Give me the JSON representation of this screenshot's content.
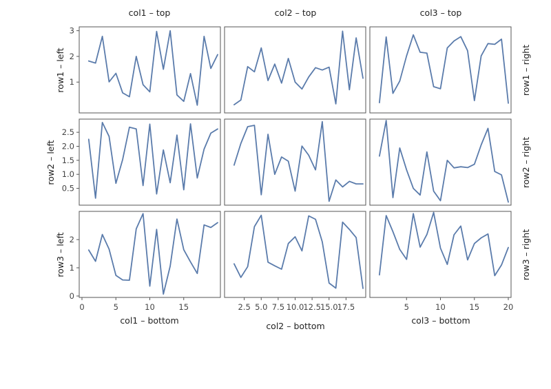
{
  "chart_data": {
    "type": "line",
    "colors": {
      "line": "#5a7bab",
      "frame": "#555555",
      "text": "#222222"
    },
    "col_titles": [
      "col1 – top",
      "col2 – top",
      "col3 – top"
    ],
    "row_labels": [
      "row1 – left",
      "row2 – left",
      "row3 – left"
    ],
    "right_labels": [
      "row1 – right",
      "row2 – right",
      "row3 – right"
    ],
    "bottom_labels": [
      "col1 – bottom",
      "col2 – bottom",
      "col3 – bottom"
    ],
    "xlim": [
      0,
      20
    ],
    "ylims": [
      [
        -0.2,
        3.15
      ],
      [
        -0.1,
        2.97
      ],
      [
        -0.05,
        3.0
      ]
    ],
    "row_yticks": [
      {
        "values": [
          1,
          2,
          3
        ],
        "labels": [
          "1",
          "2",
          "3"
        ]
      },
      {
        "values": [
          0.5,
          1.0,
          1.5,
          2.0,
          2.5
        ],
        "labels": [
          "0.5",
          "1.0",
          "1.5",
          "2.0",
          "2.5"
        ]
      },
      {
        "values": [
          0,
          1,
          2
        ],
        "labels": [
          "0",
          "1",
          "2"
        ]
      }
    ],
    "col_xticks": [
      {
        "values": [
          0,
          5,
          10,
          15
        ],
        "labels": [
          "0",
          "5",
          "10",
          "15"
        ]
      },
      {
        "values": [
          2.5,
          5.0,
          7.5,
          10.0,
          12.5,
          15.0,
          17.5
        ],
        "labels": [
          "2.5",
          "5.0",
          "7.5",
          "10.0",
          "12.5",
          "15.0",
          "17.5"
        ]
      },
      {
        "values": [
          5,
          10,
          15,
          20
        ],
        "labels": [
          "5",
          "10",
          "15",
          "20"
        ]
      }
    ],
    "panels": [
      {
        "row": 0,
        "col": 0,
        "x": [
          1,
          2,
          3,
          4,
          5,
          6,
          7,
          8,
          9,
          10,
          11,
          12,
          13,
          14,
          15,
          16,
          17,
          18,
          19,
          20
        ],
        "y": [
          1.82,
          1.74,
          2.78,
          1.01,
          1.34,
          0.58,
          0.43,
          2.0,
          0.9,
          0.62,
          2.97,
          1.5,
          3.0,
          0.5,
          0.25,
          1.33,
          0.1,
          2.78,
          1.53,
          2.07
        ]
      },
      {
        "row": 0,
        "col": 1,
        "x": [
          1,
          2,
          3,
          4,
          5,
          6,
          7,
          8,
          9,
          10,
          11,
          12,
          13,
          14,
          15,
          16,
          17,
          18,
          19,
          20
        ],
        "y": [
          0.12,
          0.3,
          1.6,
          1.4,
          2.33,
          1.06,
          1.7,
          0.96,
          1.92,
          1.0,
          0.73,
          1.2,
          1.56,
          1.47,
          1.58,
          0.15,
          2.98,
          0.7,
          2.72,
          1.15
        ]
      },
      {
        "row": 0,
        "col": 2,
        "x": [
          1,
          2,
          3,
          4,
          5,
          6,
          7,
          8,
          9,
          10,
          11,
          12,
          13,
          14,
          15,
          16,
          17,
          18,
          19,
          20
        ],
        "y": [
          0.2,
          2.76,
          0.56,
          1.04,
          2.02,
          2.84,
          2.16,
          2.13,
          0.82,
          0.74,
          2.33,
          2.6,
          2.77,
          2.22,
          0.28,
          2.02,
          2.5,
          2.47,
          2.67,
          0.18
        ]
      },
      {
        "row": 1,
        "col": 0,
        "x": [
          1,
          2,
          3,
          4,
          5,
          6,
          7,
          8,
          9,
          10,
          11,
          12,
          13,
          14,
          15,
          16,
          17,
          18,
          19,
          20
        ],
        "y": [
          2.25,
          0.15,
          2.85,
          2.35,
          0.68,
          1.53,
          2.68,
          2.62,
          0.6,
          2.79,
          0.3,
          1.87,
          0.7,
          2.4,
          0.45,
          2.8,
          0.87,
          1.9,
          2.47,
          2.62
        ]
      },
      {
        "row": 1,
        "col": 1,
        "x": [
          1,
          2,
          3,
          4,
          5,
          6,
          7,
          8,
          9,
          10,
          11,
          12,
          13,
          14,
          15,
          16,
          17,
          18,
          19,
          20
        ],
        "y": [
          1.33,
          2.1,
          2.7,
          2.75,
          0.27,
          2.43,
          1.0,
          1.62,
          1.47,
          0.4,
          2.01,
          1.68,
          1.16,
          2.88,
          0.04,
          0.8,
          0.55,
          0.75,
          0.66,
          0.66
        ]
      },
      {
        "row": 1,
        "col": 2,
        "x": [
          1,
          2,
          3,
          4,
          5,
          6,
          7,
          8,
          9,
          10,
          11,
          12,
          13,
          14,
          15,
          16,
          17,
          18,
          19,
          20
        ],
        "y": [
          1.65,
          2.92,
          0.17,
          1.94,
          1.16,
          0.5,
          0.26,
          1.8,
          0.4,
          0.06,
          1.5,
          1.23,
          1.27,
          1.24,
          1.36,
          2.05,
          2.64,
          1.1,
          0.98,
          0.01
        ]
      },
      {
        "row": 2,
        "col": 0,
        "x": [
          1,
          2,
          3,
          4,
          5,
          6,
          7,
          8,
          9,
          10,
          11,
          12,
          13,
          14,
          15,
          16,
          17,
          18,
          19,
          20
        ],
        "y": [
          1.63,
          1.23,
          2.18,
          1.66,
          0.73,
          0.57,
          0.56,
          2.38,
          2.92,
          0.35,
          2.36,
          0.07,
          1.06,
          2.73,
          1.64,
          1.21,
          0.8,
          2.52,
          2.43,
          2.6
        ]
      },
      {
        "row": 2,
        "col": 1,
        "x": [
          1,
          2,
          3,
          4,
          5,
          6,
          7,
          8,
          9,
          10,
          11,
          12,
          13,
          14,
          15,
          16,
          17,
          18,
          19,
          20
        ],
        "y": [
          1.14,
          0.66,
          1.04,
          2.46,
          2.86,
          1.2,
          1.07,
          0.95,
          1.86,
          2.1,
          1.6,
          2.84,
          2.72,
          1.92,
          0.46,
          0.28,
          2.62,
          2.36,
          2.07,
          0.27
        ]
      },
      {
        "row": 2,
        "col": 2,
        "x": [
          1,
          2,
          3,
          4,
          5,
          6,
          7,
          8,
          9,
          10,
          11,
          12,
          13,
          14,
          15,
          16,
          17,
          18,
          19,
          20
        ],
        "y": [
          0.75,
          2.85,
          2.28,
          1.65,
          1.3,
          2.92,
          1.73,
          2.18,
          2.96,
          1.7,
          1.12,
          2.17,
          2.48,
          1.28,
          1.86,
          2.06,
          2.2,
          0.72,
          1.1,
          1.72
        ]
      }
    ]
  }
}
